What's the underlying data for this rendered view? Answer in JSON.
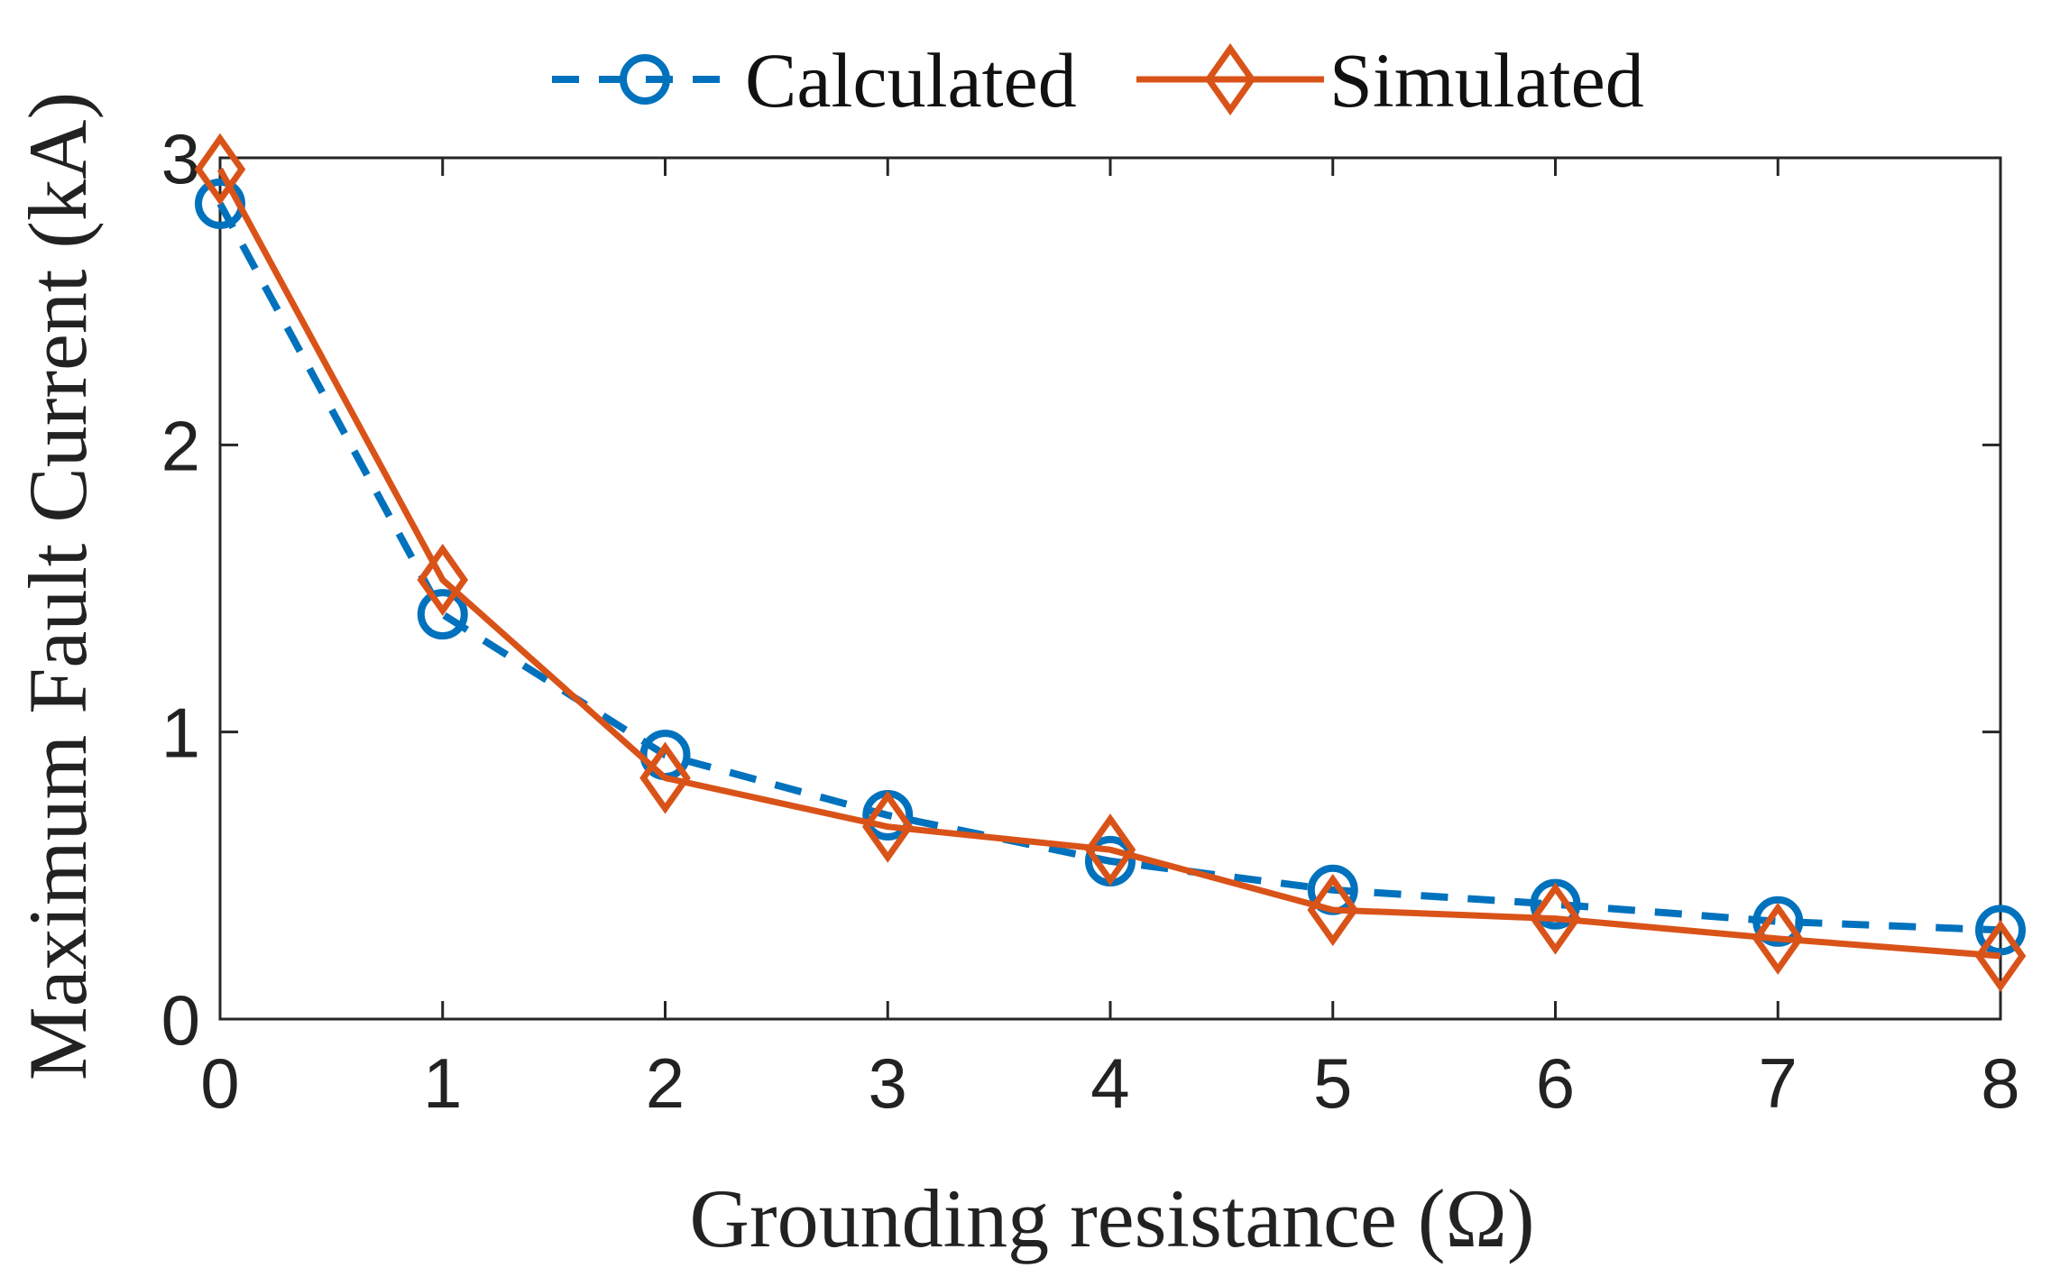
{
  "chart_data": {
    "type": "line",
    "title": "",
    "xlabel": "Grounding resistance (Ω)",
    "ylabel": "Maximum Fault Current (kA)",
    "xlim": [
      0,
      8
    ],
    "ylim": [
      0,
      3
    ],
    "xticks": [
      "0",
      "1",
      "2",
      "3",
      "4",
      "5",
      "6",
      "7",
      "8"
    ],
    "yticks": [
      "0",
      "1",
      "2",
      "3"
    ],
    "grid": false,
    "legend_position": "top",
    "x": [
      0,
      1,
      2,
      3,
      4,
      5,
      6,
      7,
      8
    ],
    "series": [
      {
        "name": "Calculated",
        "line_style": "dashed",
        "marker": "circle",
        "color": "#0072BD",
        "values": [
          2.84,
          1.41,
          0.92,
          0.71,
          0.55,
          0.45,
          0.4,
          0.34,
          0.31
        ]
      },
      {
        "name": "Simulated",
        "line_style": "solid",
        "marker": "diamond",
        "color": "#D95319",
        "values": [
          2.96,
          1.53,
          0.84,
          0.67,
          0.59,
          0.38,
          0.35,
          0.28,
          0.22
        ]
      }
    ]
  }
}
